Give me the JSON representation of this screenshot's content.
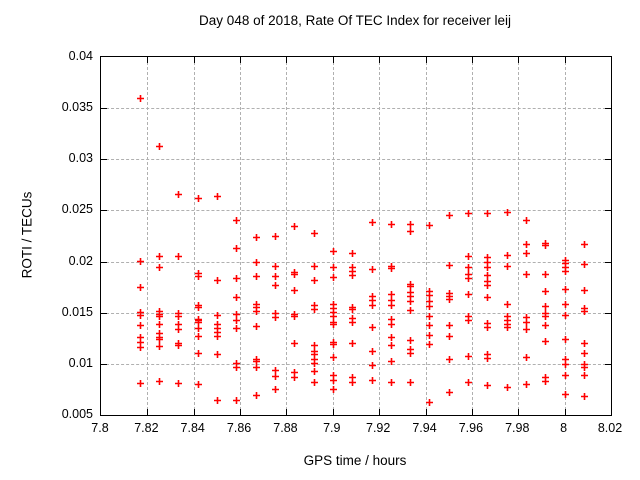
{
  "window": {
    "background_color": "#ffffff",
    "frame_color": "#000000",
    "grid_color": "#b0b0b0",
    "text_color": "#000000"
  },
  "chart_data": {
    "type": "scatter",
    "title": "Day 048 of 2018, Rate Of TEC Index for receiver leij",
    "xlabel": "GPS time / hours",
    "ylabel": "ROTI / TECUs",
    "xlim": [
      7.8,
      8.02
    ],
    "ylim": [
      0.005,
      0.04
    ],
    "xticks": {
      "values": [
        7.8,
        7.82,
        7.84,
        7.86,
        7.88,
        7.9,
        7.92,
        7.94,
        7.96,
        7.98,
        8.0,
        8.02
      ],
      "labels": [
        "7.8",
        "7.82",
        "7.84",
        "7.86",
        "7.88",
        "7.9",
        "7.92",
        "7.94",
        "7.96",
        "7.98",
        "8",
        "8.02"
      ]
    },
    "yticks": {
      "values": [
        0.005,
        0.01,
        0.015,
        0.02,
        0.025,
        0.03,
        0.035,
        0.04
      ],
      "labels": [
        "0.005",
        "0.01",
        "0.015",
        "0.02",
        "0.025",
        "0.03",
        "0.035",
        "0.04"
      ]
    },
    "grid": true,
    "grid_style": "dashed",
    "legend": false,
    "marker": {
      "shape": "plus",
      "color": "#ff0000",
      "size": 7,
      "stroke_width": 1.6
    },
    "series": [
      {
        "name": "ROTI",
        "points": [
          [
            7.8167,
            0.036
          ],
          [
            7.8167,
            0.0201
          ],
          [
            7.8167,
            0.0175
          ],
          [
            7.8167,
            0.0151
          ],
          [
            7.8167,
            0.0148
          ],
          [
            7.8167,
            0.0138
          ],
          [
            7.8167,
            0.0126
          ],
          [
            7.8167,
            0.0121
          ],
          [
            7.8167,
            0.0116
          ],
          [
            7.8167,
            0.0081
          ],
          [
            7.825,
            0.0313
          ],
          [
            7.825,
            0.0205
          ],
          [
            7.825,
            0.0195
          ],
          [
            7.825,
            0.0152
          ],
          [
            7.825,
            0.0149
          ],
          [
            7.825,
            0.0147
          ],
          [
            7.825,
            0.0139
          ],
          [
            7.825,
            0.013
          ],
          [
            7.825,
            0.0126
          ],
          [
            7.825,
            0.0124
          ],
          [
            7.825,
            0.0117
          ],
          [
            7.825,
            0.0083
          ],
          [
            7.8333,
            0.0266
          ],
          [
            7.8333,
            0.0205
          ],
          [
            7.8333,
            0.015
          ],
          [
            7.8333,
            0.0147
          ],
          [
            7.8333,
            0.0139
          ],
          [
            7.8333,
            0.0134
          ],
          [
            7.8333,
            0.012
          ],
          [
            7.8333,
            0.0118
          ],
          [
            7.8333,
            0.0081
          ],
          [
            7.8417,
            0.0262
          ],
          [
            7.8417,
            0.0189
          ],
          [
            7.8417,
            0.0186
          ],
          [
            7.8417,
            0.0158
          ],
          [
            7.8417,
            0.0156
          ],
          [
            7.8417,
            0.0144
          ],
          [
            7.8417,
            0.0143
          ],
          [
            7.8417,
            0.0141
          ],
          [
            7.8417,
            0.0135
          ],
          [
            7.8417,
            0.0127
          ],
          [
            7.8417,
            0.0111
          ],
          [
            7.8417,
            0.008
          ],
          [
            7.85,
            0.0264
          ],
          [
            7.85,
            0.0182
          ],
          [
            7.85,
            0.0148
          ],
          [
            7.85,
            0.0139
          ],
          [
            7.85,
            0.0135
          ],
          [
            7.85,
            0.0131
          ],
          [
            7.85,
            0.0127
          ],
          [
            7.85,
            0.011
          ],
          [
            7.85,
            0.0065
          ],
          [
            7.8583,
            0.0241
          ],
          [
            7.8583,
            0.0213
          ],
          [
            7.8583,
            0.0184
          ],
          [
            7.8583,
            0.0165
          ],
          [
            7.8583,
            0.0149
          ],
          [
            7.8583,
            0.0143
          ],
          [
            7.8583,
            0.0135
          ],
          [
            7.8583,
            0.0101
          ],
          [
            7.8583,
            0.0097
          ],
          [
            7.8583,
            0.0065
          ],
          [
            7.8667,
            0.0224
          ],
          [
            7.8667,
            0.02
          ],
          [
            7.8667,
            0.0186
          ],
          [
            7.8667,
            0.0159
          ],
          [
            7.8667,
            0.0156
          ],
          [
            7.8667,
            0.0152
          ],
          [
            7.8667,
            0.0137
          ],
          [
            7.8667,
            0.0105
          ],
          [
            7.8667,
            0.0103
          ],
          [
            7.8667,
            0.0097
          ],
          [
            7.8667,
            0.007
          ],
          [
            7.875,
            0.0225
          ],
          [
            7.875,
            0.0196
          ],
          [
            7.875,
            0.0186
          ],
          [
            7.875,
            0.0177
          ],
          [
            7.875,
            0.015
          ],
          [
            7.875,
            0.0146
          ],
          [
            7.875,
            0.0094
          ],
          [
            7.875,
            0.0088
          ],
          [
            7.875,
            0.0075
          ],
          [
            7.8833,
            0.0235
          ],
          [
            7.8833,
            0.019
          ],
          [
            7.8833,
            0.0188
          ],
          [
            7.8833,
            0.0172
          ],
          [
            7.8833,
            0.0149
          ],
          [
            7.8833,
            0.0147
          ],
          [
            7.8833,
            0.012
          ],
          [
            7.8833,
            0.0092
          ],
          [
            7.8833,
            0.0087
          ],
          [
            7.8917,
            0.0228
          ],
          [
            7.8917,
            0.0196
          ],
          [
            7.8917,
            0.0182
          ],
          [
            7.8917,
            0.0158
          ],
          [
            7.8917,
            0.0154
          ],
          [
            7.8917,
            0.0118
          ],
          [
            7.8917,
            0.0113
          ],
          [
            7.8917,
            0.011
          ],
          [
            7.8917,
            0.0105
          ],
          [
            7.8917,
            0.0101
          ],
          [
            7.8917,
            0.0093
          ],
          [
            7.8917,
            0.0082
          ],
          [
            7.9,
            0.021
          ],
          [
            7.9,
            0.0195
          ],
          [
            7.9,
            0.0185
          ],
          [
            7.9,
            0.0159
          ],
          [
            7.9,
            0.0155
          ],
          [
            7.9,
            0.0151
          ],
          [
            7.9,
            0.0147
          ],
          [
            7.9,
            0.0141
          ],
          [
            7.9,
            0.0139
          ],
          [
            7.9,
            0.0121
          ],
          [
            7.9,
            0.0119
          ],
          [
            7.9,
            0.0107
          ],
          [
            7.9,
            0.0089
          ],
          [
            7.9,
            0.0084
          ],
          [
            7.9,
            0.0075
          ],
          [
            7.9083,
            0.0208
          ],
          [
            7.9083,
            0.0195
          ],
          [
            7.9083,
            0.0191
          ],
          [
            7.9083,
            0.0187
          ],
          [
            7.9083,
            0.0156
          ],
          [
            7.9083,
            0.0154
          ],
          [
            7.9083,
            0.0145
          ],
          [
            7.9083,
            0.0141
          ],
          [
            7.9083,
            0.012
          ],
          [
            7.9083,
            0.0087
          ],
          [
            7.9083,
            0.0082
          ],
          [
            7.9167,
            0.0239
          ],
          [
            7.9167,
            0.0193
          ],
          [
            7.9167,
            0.0166
          ],
          [
            7.9167,
            0.0162
          ],
          [
            7.9167,
            0.0158
          ],
          [
            7.9167,
            0.0136
          ],
          [
            7.9167,
            0.0113
          ],
          [
            7.9167,
            0.0099
          ],
          [
            7.9167,
            0.0084
          ],
          [
            7.925,
            0.0237
          ],
          [
            7.925,
            0.0196
          ],
          [
            7.925,
            0.0194
          ],
          [
            7.925,
            0.0168
          ],
          [
            7.925,
            0.0162
          ],
          [
            7.925,
            0.0158
          ],
          [
            7.925,
            0.0144
          ],
          [
            7.925,
            0.0139
          ],
          [
            7.925,
            0.0126
          ],
          [
            7.925,
            0.0118
          ],
          [
            7.925,
            0.0103
          ],
          [
            7.925,
            0.0082
          ],
          [
            7.9333,
            0.0237
          ],
          [
            7.9333,
            0.023
          ],
          [
            7.9333,
            0.0178
          ],
          [
            7.9333,
            0.0176
          ],
          [
            7.9333,
            0.017
          ],
          [
            7.9333,
            0.0166
          ],
          [
            7.9333,
            0.0161
          ],
          [
            7.9333,
            0.0153
          ],
          [
            7.9333,
            0.0123
          ],
          [
            7.9333,
            0.0115
          ],
          [
            7.9333,
            0.0111
          ],
          [
            7.9333,
            0.0082
          ],
          [
            7.9417,
            0.0236
          ],
          [
            7.9417,
            0.0171
          ],
          [
            7.9417,
            0.0167
          ],
          [
            7.9417,
            0.0161
          ],
          [
            7.9417,
            0.0157
          ],
          [
            7.9417,
            0.0147
          ],
          [
            7.9417,
            0.0138
          ],
          [
            7.9417,
            0.0128
          ],
          [
            7.9417,
            0.0119
          ],
          [
            7.9417,
            0.0063
          ],
          [
            7.95,
            0.0246
          ],
          [
            7.95,
            0.0197
          ],
          [
            7.95,
            0.0169
          ],
          [
            7.95,
            0.0166
          ],
          [
            7.95,
            0.0163
          ],
          [
            7.95,
            0.0138
          ],
          [
            7.95,
            0.0127
          ],
          [
            7.95,
            0.0105
          ],
          [
            7.95,
            0.0072
          ],
          [
            7.9583,
            0.0247
          ],
          [
            7.9583,
            0.0205
          ],
          [
            7.9583,
            0.0195
          ],
          [
            7.9583,
            0.0188
          ],
          [
            7.9583,
            0.0184
          ],
          [
            7.9583,
            0.0168
          ],
          [
            7.9583,
            0.0147
          ],
          [
            7.9583,
            0.0143
          ],
          [
            7.9583,
            0.0108
          ],
          [
            7.9583,
            0.0082
          ],
          [
            7.9667,
            0.0247
          ],
          [
            7.9667,
            0.0204
          ],
          [
            7.9667,
            0.02
          ],
          [
            7.9667,
            0.0195
          ],
          [
            7.9667,
            0.0187
          ],
          [
            7.9667,
            0.0181
          ],
          [
            7.9667,
            0.0177
          ],
          [
            7.9667,
            0.0165
          ],
          [
            7.9667,
            0.014
          ],
          [
            7.9667,
            0.0136
          ],
          [
            7.9667,
            0.011
          ],
          [
            7.9667,
            0.0106
          ],
          [
            7.9667,
            0.0079
          ],
          [
            7.975,
            0.0248
          ],
          [
            7.975,
            0.0206
          ],
          [
            7.975,
            0.0196
          ],
          [
            7.975,
            0.0159
          ],
          [
            7.975,
            0.0147
          ],
          [
            7.975,
            0.0143
          ],
          [
            7.975,
            0.0139
          ],
          [
            7.975,
            0.0136
          ],
          [
            7.975,
            0.0077
          ],
          [
            7.9833,
            0.0241
          ],
          [
            7.9833,
            0.0217
          ],
          [
            7.9833,
            0.0208
          ],
          [
            7.9833,
            0.0188
          ],
          [
            7.9833,
            0.0146
          ],
          [
            7.9833,
            0.0141
          ],
          [
            7.9833,
            0.0134
          ],
          [
            7.9833,
            0.0107
          ],
          [
            7.9833,
            0.008
          ],
          [
            7.9917,
            0.0218
          ],
          [
            7.9917,
            0.0216
          ],
          [
            7.9917,
            0.0188
          ],
          [
            7.9917,
            0.0171
          ],
          [
            7.9917,
            0.0157
          ],
          [
            7.9917,
            0.015
          ],
          [
            7.9917,
            0.0147
          ],
          [
            7.9917,
            0.0138
          ],
          [
            7.9917,
            0.0122
          ],
          [
            7.9917,
            0.0087
          ],
          [
            7.9917,
            0.0083
          ],
          [
            8.0,
            0.0202
          ],
          [
            8.0,
            0.0199
          ],
          [
            8.0,
            0.0195
          ],
          [
            8.0,
            0.0191
          ],
          [
            8.0,
            0.0173
          ],
          [
            8.0,
            0.0159
          ],
          [
            8.0,
            0.0148
          ],
          [
            8.0,
            0.0124
          ],
          [
            8.0,
            0.0105
          ],
          [
            8.0,
            0.01
          ],
          [
            8.0,
            0.0089
          ],
          [
            8.0,
            0.0071
          ],
          [
            8.0083,
            0.0217
          ],
          [
            8.0083,
            0.0198
          ],
          [
            8.0083,
            0.0172
          ],
          [
            8.0083,
            0.0155
          ],
          [
            8.0083,
            0.0152
          ],
          [
            8.0083,
            0.012
          ],
          [
            8.0083,
            0.0111
          ],
          [
            8.0083,
            0.01
          ],
          [
            8.0083,
            0.0097
          ],
          [
            8.0083,
            0.0089
          ],
          [
            8.0083,
            0.0069
          ]
        ]
      }
    ]
  }
}
